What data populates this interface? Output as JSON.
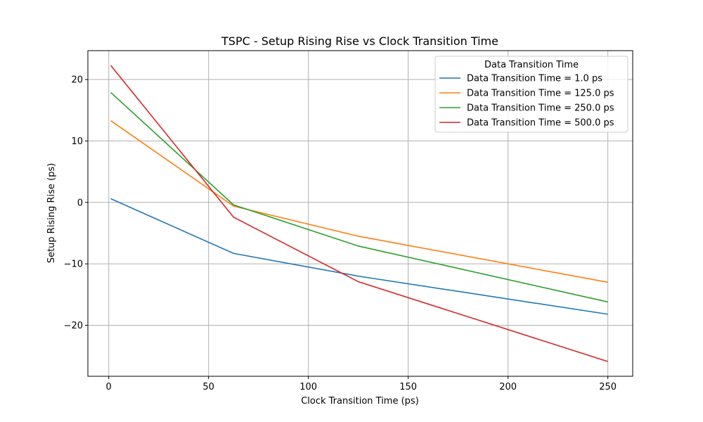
{
  "chart_data": {
    "type": "line",
    "title": "TSPC - Setup Rising Rise vs Clock Transition Time",
    "xlabel": "Clock Transition Time (ps)",
    "ylabel": "Setup Rising Rise (ps)",
    "xlim": [
      -10.45,
      262.45
    ],
    "ylim": [
      -28.3,
      24.7
    ],
    "xticks": [
      0,
      50,
      100,
      150,
      200,
      250
    ],
    "xtick_labels": [
      "0",
      "50",
      "100",
      "150",
      "200",
      "250"
    ],
    "yticks": [
      -20,
      -10,
      0,
      10,
      20
    ],
    "ytick_labels": [
      "−20",
      "−10",
      "0",
      "10",
      "20"
    ],
    "grid": true,
    "legend": {
      "title": "Data Transition Time",
      "placement": "top-right"
    },
    "x": [
      1.0,
      62.5,
      125.0,
      250.0
    ],
    "series": [
      {
        "name": "Data Transition Time = 1.0 ps",
        "color": "#1f77b4",
        "values": [
          0.6,
          -8.3,
          -12.0,
          -18.2
        ]
      },
      {
        "name": "Data Transition Time = 125.0 ps",
        "color": "#ff7f0e",
        "values": [
          13.3,
          -0.6,
          -5.5,
          -13.0
        ]
      },
      {
        "name": "Data Transition Time = 250.0 ps",
        "color": "#2ca02c",
        "values": [
          17.9,
          -0.4,
          -7.1,
          -16.2
        ]
      },
      {
        "name": "Data Transition Time = 500.0 ps",
        "color": "#d62728",
        "values": [
          22.3,
          -2.4,
          -12.9,
          -25.9
        ]
      }
    ]
  }
}
